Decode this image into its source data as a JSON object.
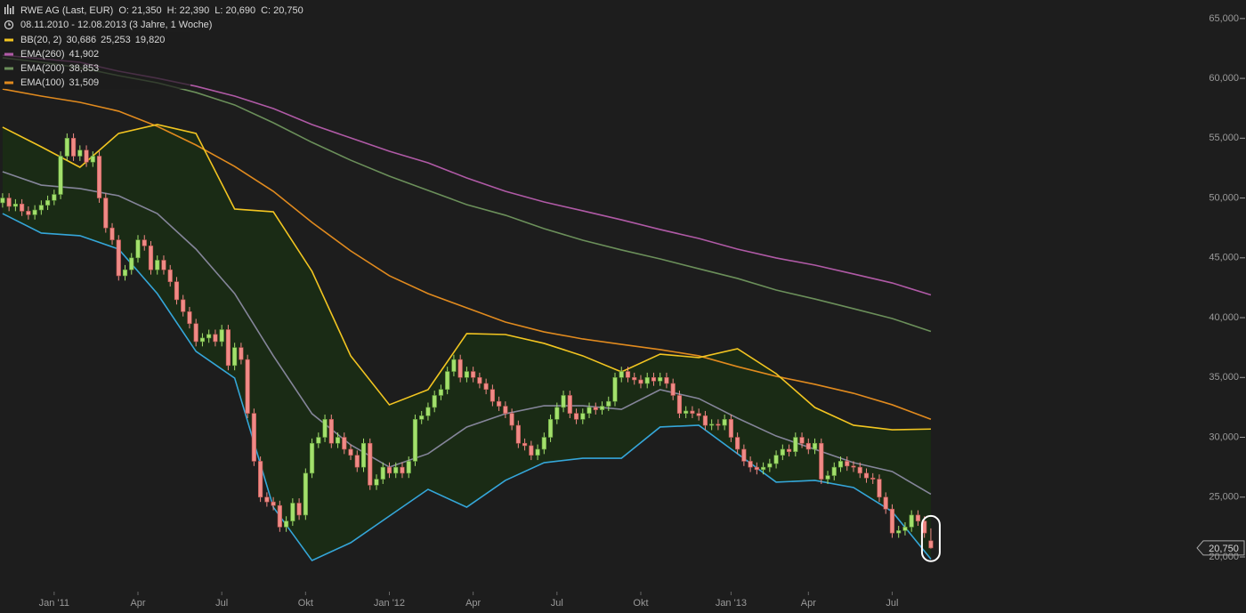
{
  "chart_data": {
    "type": "candlestick",
    "title": "RWE AG (Last, EUR)",
    "ohlc_labels": [
      {
        "label": "O:",
        "value": "21,350"
      },
      {
        "label": "H:",
        "value": "22,390"
      },
      {
        "label": "L:",
        "value": "20,690"
      },
      {
        "label": "C:",
        "value": "20,750"
      }
    ],
    "subtitle": "08.11.2010 - 12.08.2013 (3 Jahre, 1 Woche)",
    "legend": "top-left",
    "last_price_label": "20,750",
    "xlim": [
      -0.4,
      184.6
    ],
    "xticks": [
      {
        "value": 8,
        "label": "Jan '11"
      },
      {
        "value": 21,
        "label": "Apr"
      },
      {
        "value": 34,
        "label": "Jul"
      },
      {
        "value": 47,
        "label": "Okt"
      },
      {
        "value": 60,
        "label": "Jan '12"
      },
      {
        "value": 73,
        "label": "Apr"
      },
      {
        "value": 86,
        "label": "Jul"
      },
      {
        "value": 99,
        "label": "Okt"
      },
      {
        "value": 113,
        "label": "Jan '13"
      },
      {
        "value": 125,
        "label": "Apr"
      },
      {
        "value": 138,
        "label": "Jul"
      }
    ],
    "ylim": [
      17100,
      66550
    ],
    "yticks": [
      {
        "value": 20000,
        "label": "20,000"
      },
      {
        "value": 25000,
        "label": "25,000"
      },
      {
        "value": 30000,
        "label": "30,000"
      },
      {
        "value": 35000,
        "label": "35,000"
      },
      {
        "value": 40000,
        "label": "40,000"
      },
      {
        "value": 45000,
        "label": "45,000"
      },
      {
        "value": 50000,
        "label": "50,000"
      },
      {
        "value": 55000,
        "label": "55,000"
      },
      {
        "value": 60000,
        "label": "60,000"
      },
      {
        "value": 65000,
        "label": "65,000"
      }
    ],
    "candles": {
      "up_color": "#a3e06c",
      "down_color": "#f08a86",
      "x": [
        0,
        1,
        2,
        3,
        4,
        5,
        6,
        7,
        8,
        9,
        10,
        11,
        12,
        13,
        14,
        15,
        16,
        17,
        18,
        19,
        20,
        21,
        22,
        23,
        24,
        25,
        26,
        27,
        28,
        29,
        30,
        31,
        32,
        33,
        34,
        35,
        36,
        37,
        38,
        39,
        40,
        41,
        42,
        43,
        44,
        45,
        46,
        47,
        48,
        49,
        50,
        51,
        52,
        53,
        54,
        55,
        56,
        57,
        58,
        59,
        60,
        61,
        62,
        63,
        64,
        65,
        66,
        67,
        68,
        69,
        70,
        71,
        72,
        73,
        74,
        75,
        76,
        77,
        78,
        79,
        80,
        81,
        82,
        83,
        84,
        85,
        86,
        87,
        88,
        89,
        90,
        91,
        92,
        93,
        94,
        95,
        96,
        97,
        98,
        99,
        100,
        101,
        102,
        103,
        104,
        105,
        106,
        107,
        108,
        109,
        110,
        111,
        112,
        113,
        114,
        115,
        116,
        117,
        118,
        119,
        120,
        121,
        122,
        123,
        124,
        125,
        126,
        127,
        128,
        129,
        130,
        131,
        132,
        133,
        134,
        135,
        136,
        137,
        138,
        139,
        140,
        141,
        142,
        143,
        144
      ],
      "open": [
        49600,
        50000,
        49300,
        49500,
        48900,
        48600,
        49000,
        49400,
        49800,
        50300,
        53500,
        55000,
        53500,
        54000,
        53000,
        53500,
        50000,
        47500,
        46500,
        43500,
        44000,
        45000,
        46500,
        46000,
        44000,
        44800,
        44000,
        43000,
        41500,
        40500,
        39500,
        38000,
        38300,
        38600,
        38000,
        39000,
        36000,
        37500,
        36500,
        32000,
        28000,
        25000,
        24600,
        24300,
        22500,
        23000,
        24500,
        23500,
        27000,
        29500,
        30000,
        31500,
        29500,
        30000,
        29000,
        28500,
        27500,
        29500,
        26000,
        26500,
        27500,
        27000,
        27500,
        27000,
        28000,
        31500,
        31800,
        32500,
        33500,
        34000,
        35500,
        36500,
        35000,
        35500,
        35000,
        34500,
        34000,
        33000,
        32600,
        32000,
        31000,
        29500,
        29300,
        28500,
        29000,
        30000,
        31500,
        32500,
        33500,
        32000,
        31500,
        32000,
        32500,
        32300,
        32600,
        33000,
        35000,
        35500,
        35000,
        34800,
        34500,
        35000,
        34700,
        35000,
        34500,
        33500,
        32000,
        32200,
        32000,
        31800,
        31000,
        31100,
        31000,
        31500,
        30000,
        29000,
        28000,
        27500,
        27300,
        27500,
        27800,
        28500,
        29000,
        28800,
        30000,
        29500,
        29000,
        29500,
        26500,
        26800,
        27500,
        28000,
        27600,
        27500,
        27000,
        26600,
        26500,
        25000,
        24000,
        22000,
        22200,
        22500,
        23500,
        23000,
        21350
      ],
      "high": [
        50400,
        50400,
        49900,
        49900,
        49300,
        49400,
        49800,
        50200,
        50700,
        53900,
        55400,
        55400,
        54400,
        54400,
        53900,
        53900,
        50400,
        47900,
        46900,
        44400,
        45400,
        46900,
        46900,
        46400,
        45200,
        45200,
        44400,
        43400,
        41900,
        40900,
        39900,
        38700,
        39000,
        39000,
        39400,
        39400,
        37900,
        37900,
        36900,
        32400,
        28400,
        25400,
        25000,
        24700,
        23400,
        24900,
        24900,
        27400,
        29900,
        30400,
        31900,
        31900,
        30400,
        30400,
        29400,
        28900,
        29900,
        29900,
        26900,
        27900,
        27900,
        27900,
        27900,
        28400,
        31900,
        32200,
        32900,
        33900,
        34400,
        35900,
        36900,
        36900,
        35900,
        35900,
        35400,
        34900,
        34400,
        33400,
        33000,
        32400,
        31400,
        29900,
        29700,
        29400,
        30400,
        31900,
        32900,
        33900,
        33900,
        32400,
        32400,
        32900,
        32900,
        33000,
        33400,
        35400,
        35900,
        35900,
        35400,
        35200,
        35400,
        35400,
        35400,
        35400,
        34900,
        33900,
        32600,
        32600,
        32400,
        32200,
        31500,
        31500,
        31900,
        31900,
        30400,
        29400,
        28400,
        27900,
        27900,
        28200,
        28900,
        29400,
        29400,
        30400,
        30400,
        29900,
        29900,
        29900,
        27200,
        27900,
        28400,
        28400,
        28000,
        27900,
        27400,
        27000,
        26900,
        25400,
        24400,
        22600,
        22900,
        23900,
        23900,
        23400,
        22390
      ],
      "low": [
        49200,
        48900,
        48900,
        48500,
        48200,
        48200,
        48600,
        49000,
        49400,
        49900,
        53100,
        53100,
        53100,
        52600,
        52600,
        49600,
        47100,
        46100,
        43100,
        43100,
        43600,
        44600,
        45600,
        43600,
        43600,
        43600,
        42600,
        41100,
        40100,
        39100,
        37600,
        37600,
        37900,
        37600,
        37600,
        35600,
        35600,
        36100,
        31600,
        27600,
        24600,
        24200,
        23900,
        22100,
        22100,
        22600,
        23100,
        23100,
        26600,
        29100,
        29600,
        29100,
        29100,
        28600,
        28100,
        27100,
        27100,
        25600,
        25600,
        26100,
        26600,
        26600,
        26600,
        26600,
        27600,
        31100,
        31400,
        32100,
        33100,
        33600,
        35100,
        34600,
        34600,
        34600,
        34100,
        33600,
        32600,
        32200,
        31600,
        30600,
        29100,
        28900,
        28100,
        28100,
        28600,
        29600,
        31100,
        32100,
        31600,
        31100,
        31100,
        31600,
        31900,
        31900,
        32200,
        32600,
        34600,
        34600,
        34400,
        34100,
        34100,
        34300,
        34300,
        34100,
        33100,
        31600,
        31600,
        31600,
        31400,
        30600,
        30600,
        30600,
        30600,
        29600,
        28600,
        27600,
        27100,
        26900,
        26900,
        27100,
        27400,
        28100,
        28400,
        28400,
        29100,
        28600,
        28600,
        26100,
        26100,
        26400,
        27100,
        27200,
        27100,
        26600,
        26200,
        26100,
        24600,
        23600,
        21600,
        21600,
        21800,
        22100,
        22600,
        21600,
        20690
      ],
      "close": [
        50000,
        49300,
        49500,
        48900,
        48600,
        49000,
        49400,
        49800,
        50300,
        53500,
        55000,
        53500,
        54000,
        53000,
        53500,
        50000,
        47500,
        46500,
        43500,
        44000,
        45000,
        46500,
        46000,
        44000,
        44800,
        44000,
        43000,
        41500,
        40500,
        39500,
        38000,
        38300,
        38600,
        38000,
        39000,
        36000,
        37500,
        36500,
        32000,
        28000,
        25000,
        24600,
        24300,
        22500,
        23000,
        24500,
        23500,
        27000,
        29500,
        30000,
        31500,
        29500,
        30000,
        29000,
        28500,
        27500,
        29500,
        26000,
        26500,
        27500,
        27000,
        27500,
        27000,
        28000,
        31500,
        31800,
        32500,
        33500,
        34000,
        35500,
        36500,
        35000,
        35500,
        35000,
        34500,
        34000,
        33000,
        32600,
        32000,
        31000,
        29500,
        29300,
        28500,
        29000,
        30000,
        31500,
        32500,
        33500,
        32000,
        31500,
        32000,
        32500,
        32300,
        32600,
        33000,
        35000,
        35500,
        35000,
        34800,
        34500,
        35000,
        34700,
        35000,
        34500,
        33500,
        32000,
        32200,
        32000,
        31800,
        31000,
        31100,
        31000,
        31500,
        30000,
        29000,
        28000,
        27500,
        27300,
        27500,
        27800,
        28500,
        29000,
        28800,
        30000,
        29500,
        29000,
        29500,
        26500,
        26800,
        27500,
        28000,
        27600,
        27500,
        27000,
        26600,
        26500,
        25000,
        24000,
        22000,
        22200,
        22500,
        23500,
        23000,
        22000,
        20750
      ]
    },
    "bollinger": {
      "name": "BB(20, 2)",
      "colors": {
        "upper": "#f2c521",
        "middle": "#85859a",
        "lower": "#35a6d9",
        "fill": "#1a2b15"
      },
      "legend_values": [
        "30,686",
        "25,253",
        "19,820"
      ],
      "x": [
        0,
        6,
        12,
        18,
        24,
        30,
        36,
        42,
        48,
        54,
        60,
        66,
        72,
        78,
        84,
        90,
        96,
        102,
        108,
        114,
        120,
        126,
        132,
        138,
        144
      ],
      "upper": [
        55920,
        54280,
        52570,
        55400,
        56140,
        55400,
        49080,
        48850,
        43870,
        36810,
        32720,
        33980,
        38670,
        38590,
        37850,
        36810,
        35470,
        36950,
        36660,
        37400,
        35320,
        32490,
        31010,
        30630,
        30690
      ],
      "middle": [
        52200,
        51080,
        50790,
        50190,
        48700,
        45730,
        42010,
        36810,
        31970,
        29370,
        27510,
        28630,
        30860,
        31970,
        32640,
        32640,
        32340,
        33980,
        33240,
        31600,
        30110,
        29000,
        27880,
        27140,
        25250
      ],
      "lower": [
        48700,
        47070,
        46850,
        45730,
        42010,
        37180,
        34950,
        24160,
        19700,
        21190,
        23420,
        25650,
        24160,
        26400,
        27880,
        28250,
        28250,
        30860,
        31010,
        28630,
        26250,
        26400,
        25800,
        23790,
        19820
      ]
    },
    "series": [
      {
        "name": "EMA(260)",
        "color": "#b05aa6",
        "legend_value": "41,902",
        "x": [
          0,
          6,
          12,
          18,
          24,
          30,
          36,
          42,
          48,
          54,
          60,
          66,
          72,
          78,
          84,
          90,
          96,
          102,
          108,
          114,
          120,
          126,
          132,
          138,
          144
        ],
        "values": [
          61940,
          61640,
          61345,
          60600,
          60010,
          59340,
          58520,
          57480,
          56140,
          55020,
          53910,
          52940,
          51680,
          50560,
          49670,
          48930,
          48180,
          47370,
          46620,
          45730,
          44990,
          44390,
          43650,
          42900,
          41900
        ]
      },
      {
        "name": "EMA(200)",
        "color": "#6b8f5a",
        "legend_value": "38,853",
        "x": [
          0,
          6,
          12,
          18,
          24,
          30,
          36,
          42,
          48,
          54,
          60,
          66,
          72,
          78,
          84,
          90,
          96,
          102,
          108,
          114,
          120,
          126,
          132,
          138,
          144
        ],
        "values": [
          61720,
          61345,
          60900,
          60230,
          59630,
          58820,
          57780,
          56290,
          54650,
          53160,
          51830,
          50640,
          49450,
          48560,
          47440,
          46470,
          45660,
          44910,
          44090,
          43280,
          42310,
          41560,
          40750,
          39930,
          38850
        ]
      },
      {
        "name": "EMA(100)",
        "color": "#e08a1e",
        "legend_value": "31,509",
        "x": [
          0,
          6,
          12,
          18,
          24,
          30,
          36,
          42,
          48,
          54,
          60,
          66,
          72,
          78,
          84,
          90,
          96,
          102,
          108,
          114,
          120,
          126,
          132,
          138,
          144
        ],
        "values": [
          59110,
          58520,
          58000,
          57260,
          55990,
          54430,
          52640,
          50560,
          47960,
          45580,
          43500,
          42010,
          40820,
          39630,
          38810,
          38220,
          37770,
          37330,
          36810,
          35910,
          35100,
          34430,
          33680,
          32720,
          31510
        ]
      }
    ]
  }
}
